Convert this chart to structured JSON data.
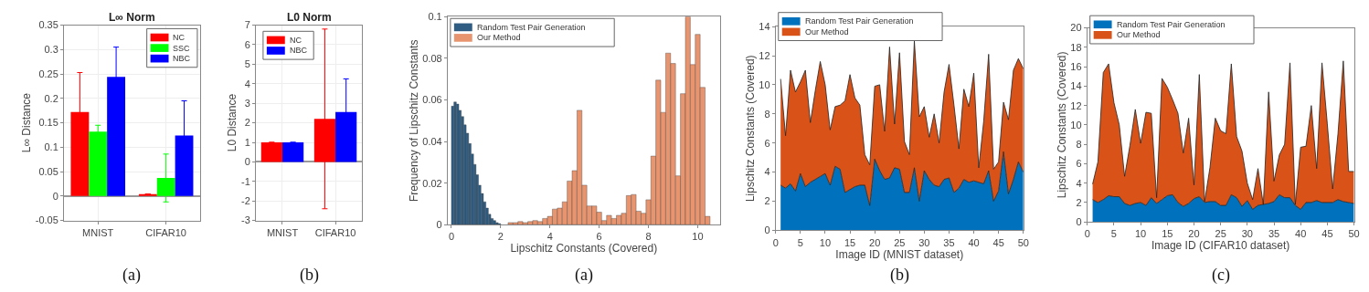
{
  "chart_data": [
    {
      "type": "bar",
      "title": "L∞ Norm",
      "ylabel": "L∞ Distance",
      "categories": [
        "MNIST",
        "CIFAR10"
      ],
      "series": [
        {
          "name": "NC",
          "color": "#ff0000",
          "values": [
            0.172,
            0.004
          ],
          "errors": [
            0.081,
            null
          ]
        },
        {
          "name": "SSC",
          "color": "#00ff00",
          "values": [
            0.132,
            0.037
          ],
          "errors": [
            0.013,
            0.049
          ]
        },
        {
          "name": "NBC",
          "color": "#0000ff",
          "values": [
            0.244,
            0.124
          ],
          "errors": [
            0.061,
            0.071
          ]
        }
      ],
      "ylim": [
        -0.05,
        0.35
      ],
      "yticks": [
        -0.05,
        0,
        0.05,
        0.1,
        0.15,
        0.2,
        0.25,
        0.3,
        0.35
      ],
      "grid": true,
      "legend": "top right",
      "annotations": [
        "(a)"
      ]
    },
    {
      "type": "bar",
      "title": "L0 Norm",
      "ylabel": "L0 Distance",
      "categories": [
        "MNIST",
        "CIFAR10"
      ],
      "series": [
        {
          "name": "NC",
          "color": "#ff0000",
          "values": [
            1,
            2.2
          ],
          "errors": [
            null,
            4.6
          ]
        },
        {
          "name": "NBC",
          "color": "#0000ff",
          "values": [
            1,
            2.55
          ],
          "errors": [
            null,
            1.7
          ]
        }
      ],
      "ylim": [
        -3,
        7
      ],
      "yticks": [
        -3,
        -2,
        -1,
        0,
        1,
        2,
        3,
        4,
        5,
        6,
        7
      ],
      "grid": true,
      "legend": "top left",
      "annotations": [
        "(b)"
      ]
    },
    {
      "type": "histogram",
      "xlabel": "Lipschitz Constants (Covered)",
      "ylabel": "Frequency of Lipschitz Constants",
      "bins": [
        0,
        0.1,
        0.2,
        0.3,
        0.4,
        0.5,
        0.6,
        0.7,
        0.8,
        0.9,
        1.0,
        1.1,
        1.2,
        1.3,
        1.4,
        1.5,
        1.6,
        1.7,
        1.8,
        1.9,
        2.0,
        2.3,
        2.5,
        2.7,
        2.9,
        3.1,
        3.3,
        3.5,
        3.7,
        3.9,
        4.1,
        4.3,
        4.5,
        4.7,
        4.9,
        5.1,
        5.3,
        5.5,
        5.7,
        5.9,
        6.1,
        6.3,
        6.5,
        6.7,
        6.9,
        7.1,
        7.3,
        7.5,
        7.7,
        7.9,
        8.1,
        8.3,
        8.5,
        8.7,
        8.9,
        9.1,
        9.3,
        9.5,
        9.7,
        9.9,
        10.1,
        10.3,
        10.5
      ],
      "series": [
        {
          "name": "Random Test Pair Generation",
          "color": "#2e5c82",
          "values": [
            0.057,
            0.059,
            0.058,
            0.055,
            0.052,
            0.048,
            0.044,
            0.039,
            0.034,
            0.029,
            0.024,
            0.019,
            0.015,
            0.011,
            0.008,
            0.005,
            0.003,
            0.002,
            0.001,
            0.0005,
            null,
            null,
            null,
            null,
            null,
            null,
            null,
            null,
            null,
            null,
            null,
            null,
            null,
            null,
            null,
            null,
            null,
            null,
            null,
            null,
            null,
            null,
            null,
            null,
            null,
            null,
            null,
            null,
            null,
            null,
            null,
            null,
            null,
            null,
            null,
            null,
            null,
            null,
            null,
            null,
            null,
            null
          ]
        },
        {
          "name": "Our Method",
          "color": "#e8946e",
          "values": [
            null,
            null,
            null,
            null,
            null,
            null,
            null,
            null,
            null,
            null,
            null,
            null,
            null,
            null,
            null,
            null,
            null,
            null,
            null,
            null,
            null,
            0.001,
            0.001,
            0.0015,
            0.001,
            0.0015,
            0.002,
            0.0015,
            0.003,
            0.004,
            0.0075,
            0.008,
            0.011,
            0.021,
            0.026,
            0.055,
            0.019,
            0.009,
            0.009,
            0.006,
            0.002,
            0.0045,
            0.003,
            0.0045,
            0.0055,
            0.014,
            0.0145,
            0.0065,
            0.0055,
            0.012,
            0.033,
            0.0695,
            0.054,
            0.0825,
            0.0775,
            0.0235,
            0.063,
            0.1,
            0.077,
            0.0915,
            0.066,
            0.004
          ]
        }
      ],
      "xlim": [
        -0.15,
        10.9
      ],
      "xticks": [
        0,
        2,
        4,
        6,
        8,
        10
      ],
      "ylim": [
        0,
        0.1
      ],
      "yticks": [
        0,
        0.02,
        0.04,
        0.06,
        0.08,
        0.1
      ],
      "legend": "top left",
      "annotations": [
        "(a)"
      ]
    },
    {
      "type": "area",
      "stacked": true,
      "xlabel": "Image ID (MNIST dataset)",
      "ylabel": "Lipschitz Constants (Covered)",
      "x": [
        1,
        2,
        3,
        4,
        5,
        6,
        7,
        8,
        9,
        10,
        11,
        12,
        13,
        14,
        15,
        16,
        17,
        18,
        19,
        20,
        21,
        22,
        23,
        24,
        25,
        26,
        27,
        28,
        29,
        30,
        31,
        32,
        33,
        34,
        35,
        36,
        37,
        38,
        39,
        40,
        41,
        42,
        43,
        44,
        45,
        46,
        47,
        48,
        49,
        50
      ],
      "series": [
        {
          "name": "Random Test Pair Generation",
          "color": "#0072bd",
          "values": [
            3.1,
            2.9,
            3.2,
            2.7,
            3.9,
            3.0,
            3.3,
            3.5,
            3.7,
            3.9,
            3.1,
            4.4,
            4.2,
            2.6,
            2.8,
            3.0,
            3.1,
            3.1,
            1.7,
            4.9,
            4.1,
            3.5,
            3.6,
            4.3,
            4.2,
            2.6,
            2.6,
            4.3,
            2.0,
            4.1,
            3.5,
            3.1,
            3.0,
            3.5,
            3.6,
            2.6,
            2.9,
            3.5,
            3.3,
            3.4,
            3.3,
            3.2,
            4.1,
            2.0,
            2.7,
            5.4,
            2.5,
            3.5,
            4.7,
            4.0
          ]
        },
        {
          "name": "Our Method",
          "color": "#d95319",
          "values": [
            7.3,
            3.6,
            7.8,
            6.8,
            6.3,
            8.0,
            4.1,
            6.1,
            7.9,
            6.1,
            3.8,
            4.1,
            4.4,
            6.3,
            7.9,
            6.1,
            5.5,
            2.1,
            2.8,
            5.0,
            5.9,
            3.3,
            9.0,
            3.0,
            8.0,
            3.5,
            2.6,
            8.7,
            5.8,
            4.4,
            2.9,
            4.9,
            3.0,
            6.0,
            7.8,
            6.0,
            2.7,
            6.2,
            5.2,
            7.4,
            1.0,
            4.3,
            8.0,
            2.2,
            2.0,
            3.4,
            5.1,
            7.5,
            7.1,
            7.1
          ]
        }
      ],
      "xlim": [
        0,
        50
      ],
      "xticks": [
        0,
        5,
        10,
        15,
        20,
        25,
        30,
        35,
        40,
        45,
        50
      ],
      "ylim": [
        0,
        14
      ],
      "yticks": [
        0,
        2,
        4,
        6,
        8,
        10,
        12,
        14
      ],
      "legend": "top left",
      "annotations": [
        "(b)"
      ]
    },
    {
      "type": "area",
      "stacked": true,
      "xlabel": "Image ID (CIFAR10 dataset)",
      "ylabel": "Lipschitz Constants (Covered)",
      "x": [
        1,
        2,
        3,
        4,
        5,
        6,
        7,
        8,
        9,
        10,
        11,
        12,
        13,
        14,
        15,
        16,
        17,
        18,
        19,
        20,
        21,
        22,
        23,
        24,
        25,
        26,
        27,
        28,
        29,
        30,
        31,
        32,
        33,
        34,
        35,
        36,
        37,
        38,
        39,
        40,
        41,
        42,
        43,
        44,
        45,
        46,
        47,
        48,
        49,
        50
      ],
      "series": [
        {
          "name": "Random Test Pair Generation",
          "color": "#0072bd",
          "values": [
            2.3,
            2.0,
            2.3,
            2.7,
            2.6,
            2.6,
            1.9,
            1.7,
            1.9,
            2.0,
            1.7,
            2.5,
            1.9,
            2.3,
            2.7,
            2.8,
            2.0,
            1.6,
            1.9,
            2.4,
            2.6,
            2.0,
            2.1,
            2.1,
            1.7,
            1.7,
            2.8,
            2.5,
            1.6,
            2.2,
            1.3,
            1.7,
            1.8,
            1.9,
            2.1,
            2.8,
            2.5,
            2.5,
            1.7,
            1.3,
            2.0,
            2.0,
            2.2,
            2.0,
            2.0,
            2.0,
            2.3,
            2.1,
            2.0,
            1.9
          ]
        },
        {
          "name": "Our Method",
          "color": "#d95319",
          "values": [
            1.6,
            4.2,
            13.1,
            13.6,
            9.7,
            7.4,
            2.8,
            6.2,
            9.7,
            6.1,
            9.6,
            8.7,
            0.6,
            12.5,
            11.2,
            9.8,
            9.2,
            5.5,
            8.8,
            1.4,
            12.6,
            0.1,
            3.5,
            8.6,
            7.7,
            7.4,
            13.5,
            6.3,
            5.7,
            1.8,
            1.0,
            3.8,
            0.0,
            11.5,
            2.1,
            4.1,
            5.5,
            13.9,
            0.1,
            6.4,
            5.8,
            10.0,
            3.3,
            14.4,
            8.1,
            1.4,
            6.8,
            14.5,
            3.2,
            3.3
          ]
        }
      ],
      "xlim": [
        0,
        50
      ],
      "xticks": [
        0,
        5,
        10,
        15,
        20,
        25,
        30,
        35,
        40,
        45,
        50
      ],
      "ylim": [
        0,
        20
      ],
      "yticks": [
        0,
        2,
        4,
        6,
        8,
        10,
        12,
        14,
        16,
        18,
        20
      ],
      "legend": "top left",
      "annotations": [
        "(c)"
      ]
    }
  ]
}
